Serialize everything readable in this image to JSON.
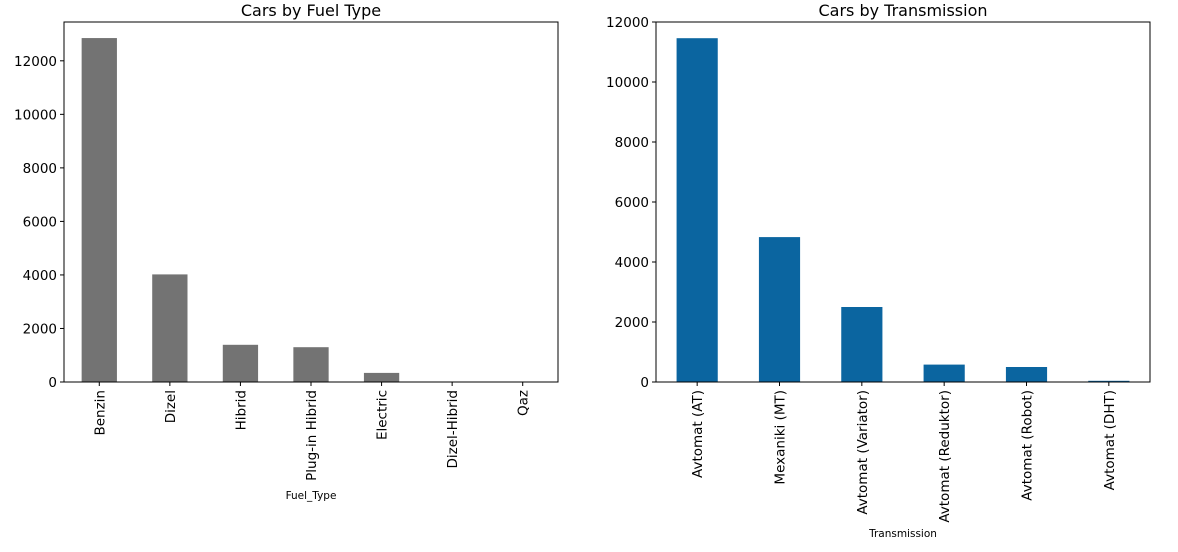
{
  "chart_data": [
    {
      "type": "bar",
      "title": "Cars by Fuel Type",
      "xlabel": "Fuel_Type",
      "ylabel": "",
      "categories": [
        "Benzin",
        "Dizel",
        "Hibrid",
        "Plug-in Hibrid",
        "Electric",
        "Dizel-Hibrid",
        "Qaz"
      ],
      "values": [
        12850,
        4020,
        1390,
        1300,
        340,
        8,
        4
      ],
      "ylim": [
        0,
        13450
      ],
      "yticks": [
        0,
        2000,
        4000,
        6000,
        8000,
        10000,
        12000
      ],
      "ytick_labels": [
        "0",
        "2000",
        "4000",
        "6000",
        "8000",
        "10000",
        "12000"
      ],
      "color": "#737373",
      "grid": false
    },
    {
      "type": "bar",
      "title": "Cars by Transmission",
      "xlabel": "Transmission",
      "ylabel": "",
      "categories": [
        "Avtomat (AT)",
        "Mexaniki (MT)",
        "Avtomat (Variator)",
        "Avtomat (Reduktor)",
        "Avtomat (Robot)",
        "Avtomat (DHT)"
      ],
      "values": [
        11460,
        4830,
        2500,
        580,
        500,
        40
      ],
      "ylim": [
        0,
        12000
      ],
      "yticks": [
        0,
        2000,
        4000,
        6000,
        8000,
        10000,
        12000
      ],
      "ytick_labels": [
        "0",
        "2000",
        "4000",
        "6000",
        "8000",
        "10000",
        "12000"
      ],
      "color": "#0b65a0",
      "grid": false
    }
  ]
}
